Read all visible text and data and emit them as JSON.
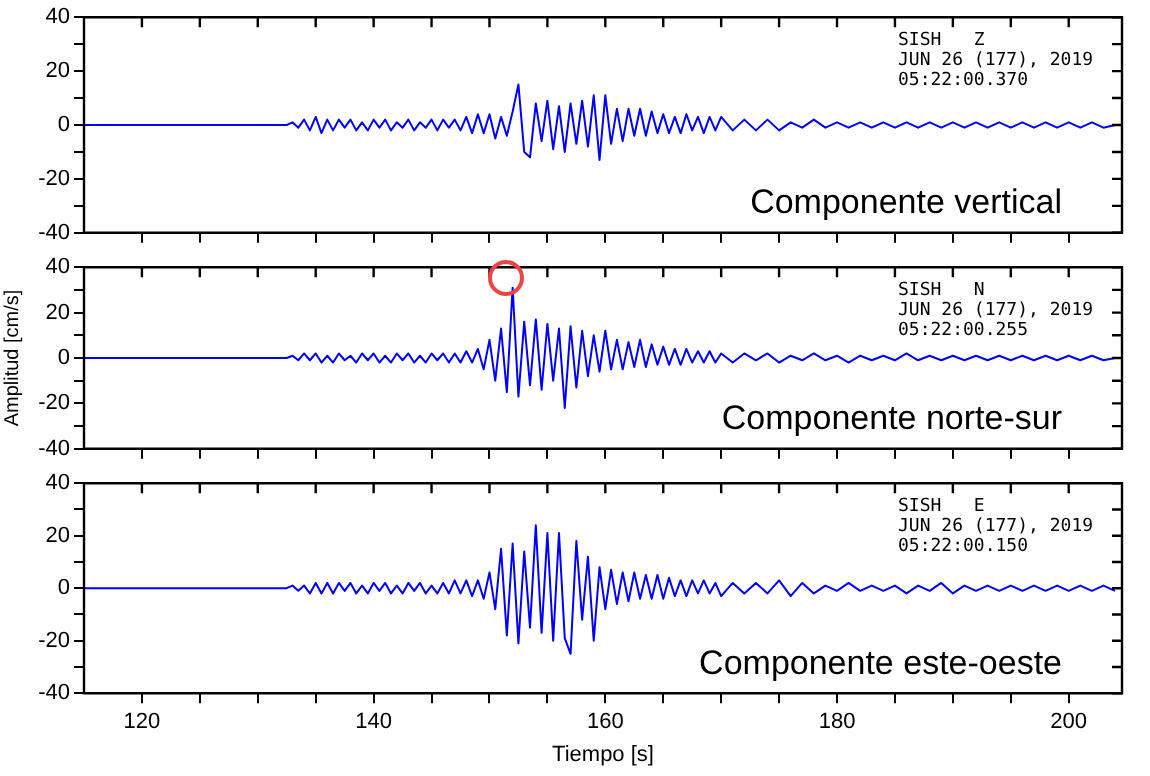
{
  "chart_data": [
    {
      "type": "line",
      "annotations": [
        "SISH   Z",
        "JUN 26 (177), 2019",
        "05:22:00.370",
        "Componente vertical"
      ],
      "xlim": [
        115,
        204.6
      ],
      "ylim": [
        -40,
        40
      ],
      "xticks": [
        {
          "value": 120,
          "label": null
        },
        {
          "value": 125,
          "label": null
        },
        {
          "value": 130,
          "label": null
        },
        {
          "value": 135,
          "label": null
        },
        {
          "value": 140,
          "label": null
        },
        {
          "value": 145,
          "label": null
        },
        {
          "value": 150,
          "label": null
        },
        {
          "value": 155,
          "label": null
        },
        {
          "value": 160,
          "label": null
        },
        {
          "value": 165,
          "label": null
        },
        {
          "value": 170,
          "label": null
        },
        {
          "value": 175,
          "label": null
        },
        {
          "value": 180,
          "label": null
        },
        {
          "value": 185,
          "label": null
        },
        {
          "value": 190,
          "label": null
        },
        {
          "value": 195,
          "label": null
        },
        {
          "value": 200,
          "label": null
        }
      ],
      "yticks": [
        -40,
        {
          "value": -30,
          "label": null
        },
        -20,
        {
          "value": -10,
          "label": null
        },
        0,
        {
          "value": 10,
          "label": null
        },
        20,
        {
          "value": 30,
          "label": null
        },
        40
      ],
      "tick_labels": "y",
      "grid": false,
      "legend": false,
      "marker": "none",
      "line_style": "solid",
      "x": [
        115,
        132,
        132.5,
        133,
        133.5,
        134,
        134.5,
        135,
        135.5,
        136,
        136.5,
        137,
        137.5,
        138,
        138.5,
        139,
        139.5,
        140,
        140.5,
        141,
        141.5,
        142,
        142.5,
        143,
        143.5,
        144,
        144.5,
        145,
        145.5,
        146,
        146.5,
        147,
        147.5,
        148,
        148.5,
        149,
        149.5,
        150,
        150.5,
        151,
        151.5,
        152,
        152.5,
        153,
        153.5,
        154,
        154.5,
        155,
        155.5,
        156,
        156.5,
        157,
        157.5,
        158,
        158.5,
        159,
        159.5,
        160,
        160.5,
        161,
        161.5,
        162,
        162.5,
        163,
        163.5,
        164,
        164.5,
        165,
        165.5,
        166,
        166.5,
        167,
        167.5,
        168,
        168.5,
        169,
        169.5,
        170,
        171,
        172,
        173,
        174,
        175,
        176,
        177,
        178,
        179,
        180,
        181,
        182,
        183,
        184,
        185,
        186,
        187,
        188,
        189,
        190,
        191,
        192,
        193,
        194,
        195,
        196,
        197,
        198,
        199,
        200,
        201,
        202,
        203,
        204
      ],
      "series": [
        {
          "color": "#0000ff",
          "values": [
            0,
            0,
            0,
            1,
            -1,
            2,
            -2,
            3,
            -3,
            2,
            -2,
            2,
            -1,
            2,
            -2,
            1,
            -2,
            2,
            -1,
            2,
            -2,
            1,
            -1,
            2,
            -2,
            1,
            -1,
            2,
            -2,
            2,
            -1,
            2,
            -2,
            3,
            -3,
            4,
            -3,
            4,
            -5,
            3,
            -4,
            5,
            15,
            -10,
            -12,
            8,
            -6,
            9,
            -9,
            7,
            -10,
            8,
            -7,
            9,
            -8,
            11,
            -13,
            11,
            -7,
            6,
            -6,
            6,
            -4,
            6,
            -4,
            5,
            -3,
            4,
            -3,
            3,
            -3,
            4,
            -2,
            3,
            -3,
            3,
            -2,
            3,
            -2,
            2,
            -2,
            2,
            -2,
            1,
            -1,
            2,
            -1,
            1,
            -1,
            1,
            -1,
            1,
            -1,
            1,
            -1,
            1,
            -1,
            1,
            -1,
            1,
            -1,
            1,
            -1,
            1,
            -1,
            1,
            -1,
            1,
            -1,
            1,
            -1,
            0
          ]
        }
      ]
    },
    {
      "type": "line",
      "ylabel": "Amplitud [cm/s]",
      "annotations": [
        "SISH   N",
        "JUN 26 (177), 2019",
        "05:22:00.255",
        "Componente norte-sur"
      ],
      "xlim": [
        115,
        204.6
      ],
      "ylim": [
        -40,
        40
      ],
      "xticks": [
        {
          "value": 120,
          "label": null
        },
        {
          "value": 125,
          "label": null
        },
        {
          "value": 130,
          "label": null
        },
        {
          "value": 135,
          "label": null
        },
        {
          "value": 140,
          "label": null
        },
        {
          "value": 145,
          "label": null
        },
        {
          "value": 150,
          "label": null
        },
        {
          "value": 155,
          "label": null
        },
        {
          "value": 160,
          "label": null
        },
        {
          "value": 165,
          "label": null
        },
        {
          "value": 170,
          "label": null
        },
        {
          "value": 175,
          "label": null
        },
        {
          "value": 180,
          "label": null
        },
        {
          "value": 185,
          "label": null
        },
        {
          "value": 190,
          "label": null
        },
        {
          "value": 195,
          "label": null
        },
        {
          "value": 200,
          "label": null
        }
      ],
      "yticks": [
        -40,
        {
          "value": -30,
          "label": null
        },
        -20,
        {
          "value": -10,
          "label": null
        },
        0,
        {
          "value": 10,
          "label": null
        },
        20,
        {
          "value": 30,
          "label": null
        },
        40
      ],
      "tick_labels": "y",
      "grid": false,
      "legend": false,
      "marker": "none",
      "line_style": "solid",
      "x": [
        115,
        132,
        132.5,
        133,
        133.5,
        134,
        134.5,
        135,
        135.5,
        136,
        136.5,
        137,
        137.5,
        138,
        138.5,
        139,
        139.5,
        140,
        140.5,
        141,
        141.5,
        142,
        142.5,
        143,
        143.5,
        144,
        144.5,
        145,
        145.5,
        146,
        146.5,
        147,
        147.5,
        148,
        148.5,
        149,
        149.5,
        150,
        150.5,
        151,
        151.5,
        152,
        152.5,
        153,
        153.5,
        154,
        154.5,
        155,
        155.5,
        156,
        156.5,
        157,
        157.5,
        158,
        158.5,
        159,
        159.5,
        160,
        160.5,
        161,
        161.5,
        162,
        162.5,
        163,
        163.5,
        164,
        164.5,
        165,
        165.5,
        166,
        166.5,
        167,
        167.5,
        168,
        168.5,
        169,
        169.5,
        170,
        171,
        172,
        173,
        174,
        175,
        176,
        177,
        178,
        179,
        180,
        181,
        182,
        183,
        184,
        185,
        186,
        187,
        188,
        189,
        190,
        191,
        192,
        193,
        194,
        195,
        196,
        197,
        198,
        199,
        200,
        201,
        202,
        203,
        204
      ],
      "series": [
        {
          "color": "#0000ff",
          "values": [
            0,
            0,
            0,
            1,
            -1,
            2,
            -1,
            2,
            -2,
            1,
            -2,
            2,
            -1,
            1,
            -2,
            2,
            -1,
            2,
            -2,
            1,
            -2,
            2,
            -1,
            2,
            -2,
            1,
            -2,
            2,
            -1,
            2,
            -2,
            2,
            -2,
            3,
            -2,
            4,
            -5,
            8,
            -10,
            13,
            -15,
            31,
            -17,
            16,
            -12,
            17,
            -14,
            15,
            -10,
            13,
            -22,
            14,
            -13,
            12,
            -8,
            10,
            -6,
            12,
            -5,
            8,
            -5,
            7,
            -4,
            8,
            -4,
            6,
            -3,
            5,
            -3,
            4,
            -3,
            4,
            -2,
            3,
            -2,
            3,
            -2,
            2,
            -2,
            2,
            -1,
            2,
            -2,
            1,
            -1,
            2,
            -1,
            1,
            -2,
            1,
            -1,
            1,
            -1,
            2,
            -1,
            1,
            -1,
            1,
            -1,
            1,
            -1,
            1,
            -1,
            1,
            -1,
            1,
            -1,
            1,
            -1,
            1,
            -1,
            0
          ]
        }
      ]
    },
    {
      "type": "line",
      "xlabel": "Tiempo [s]",
      "annotations": [
        "SISH   E",
        "JUN 26 (177), 2019",
        "05:22:00.150",
        "Componente este-oeste"
      ],
      "xlim": [
        115,
        204.6
      ],
      "ylim": [
        -40,
        40
      ],
      "xticks": [
        120,
        {
          "value": 125,
          "label": null
        },
        {
          "value": 130,
          "label": null
        },
        {
          "value": 135,
          "label": null
        },
        140,
        {
          "value": 145,
          "label": null
        },
        {
          "value": 150,
          "label": null
        },
        {
          "value": 155,
          "label": null
        },
        160,
        {
          "value": 165,
          "label": null
        },
        {
          "value": 170,
          "label": null
        },
        {
          "value": 175,
          "label": null
        },
        180,
        {
          "value": 185,
          "label": null
        },
        {
          "value": 190,
          "label": null
        },
        {
          "value": 195,
          "label": null
        },
        200
      ],
      "yticks": [
        -40,
        {
          "value": -30,
          "label": null
        },
        -20,
        {
          "value": -10,
          "label": null
        },
        0,
        {
          "value": 10,
          "label": null
        },
        20,
        {
          "value": 30,
          "label": null
        },
        40
      ],
      "grid": false,
      "legend": false,
      "marker": "none",
      "line_style": "solid",
      "x": [
        115,
        132,
        132.5,
        133,
        133.5,
        134,
        134.5,
        135,
        135.5,
        136,
        136.5,
        137,
        137.5,
        138,
        138.5,
        139,
        139.5,
        140,
        140.5,
        141,
        141.5,
        142,
        142.5,
        143,
        143.5,
        144,
        144.5,
        145,
        145.5,
        146,
        146.5,
        147,
        147.5,
        148,
        148.5,
        149,
        149.5,
        150,
        150.5,
        151,
        151.5,
        152,
        152.5,
        153,
        153.5,
        154,
        154.5,
        155,
        155.5,
        156,
        156.5,
        157,
        157.5,
        158,
        158.5,
        159,
        159.5,
        160,
        160.5,
        161,
        161.5,
        162,
        162.5,
        163,
        163.5,
        164,
        164.5,
        165,
        165.5,
        166,
        166.5,
        167,
        167.5,
        168,
        168.5,
        169,
        169.5,
        170,
        171,
        172,
        173,
        174,
        175,
        176,
        177,
        178,
        179,
        180,
        181,
        182,
        183,
        184,
        185,
        186,
        187,
        188,
        189,
        190,
        191,
        192,
        193,
        194,
        195,
        196,
        197,
        198,
        199,
        200,
        201,
        202,
        203,
        204
      ],
      "series": [
        {
          "color": "#0000ff",
          "values": [
            0,
            0,
            0,
            1,
            -1,
            1,
            -2,
            2,
            -2,
            2,
            -2,
            2,
            -1,
            2,
            -2,
            1,
            -2,
            2,
            -1,
            2,
            -2,
            1,
            -2,
            2,
            -1,
            2,
            -2,
            1,
            -2,
            2,
            -2,
            3,
            -2,
            3,
            -3,
            3,
            -4,
            6,
            -8,
            15,
            -18,
            17,
            -21,
            14,
            -15,
            24,
            -17,
            21,
            -20,
            21,
            -19,
            -25,
            18,
            -12,
            12,
            -20,
            8,
            -8,
            7,
            -6,
            6,
            -5,
            6,
            -4,
            5,
            -4,
            5,
            -4,
            4,
            -3,
            3,
            -3,
            3,
            -2,
            3,
            -2,
            2,
            -3,
            2,
            -2,
            2,
            -2,
            3,
            -3,
            2,
            -2,
            1,
            -1,
            2,
            -1,
            1,
            -1,
            1,
            -2,
            1,
            -1,
            2,
            -2,
            1,
            -1,
            1,
            -1,
            1,
            -1,
            1,
            -1,
            1,
            -1,
            1,
            -1,
            1,
            -1
          ]
        }
      ]
    }
  ]
}
